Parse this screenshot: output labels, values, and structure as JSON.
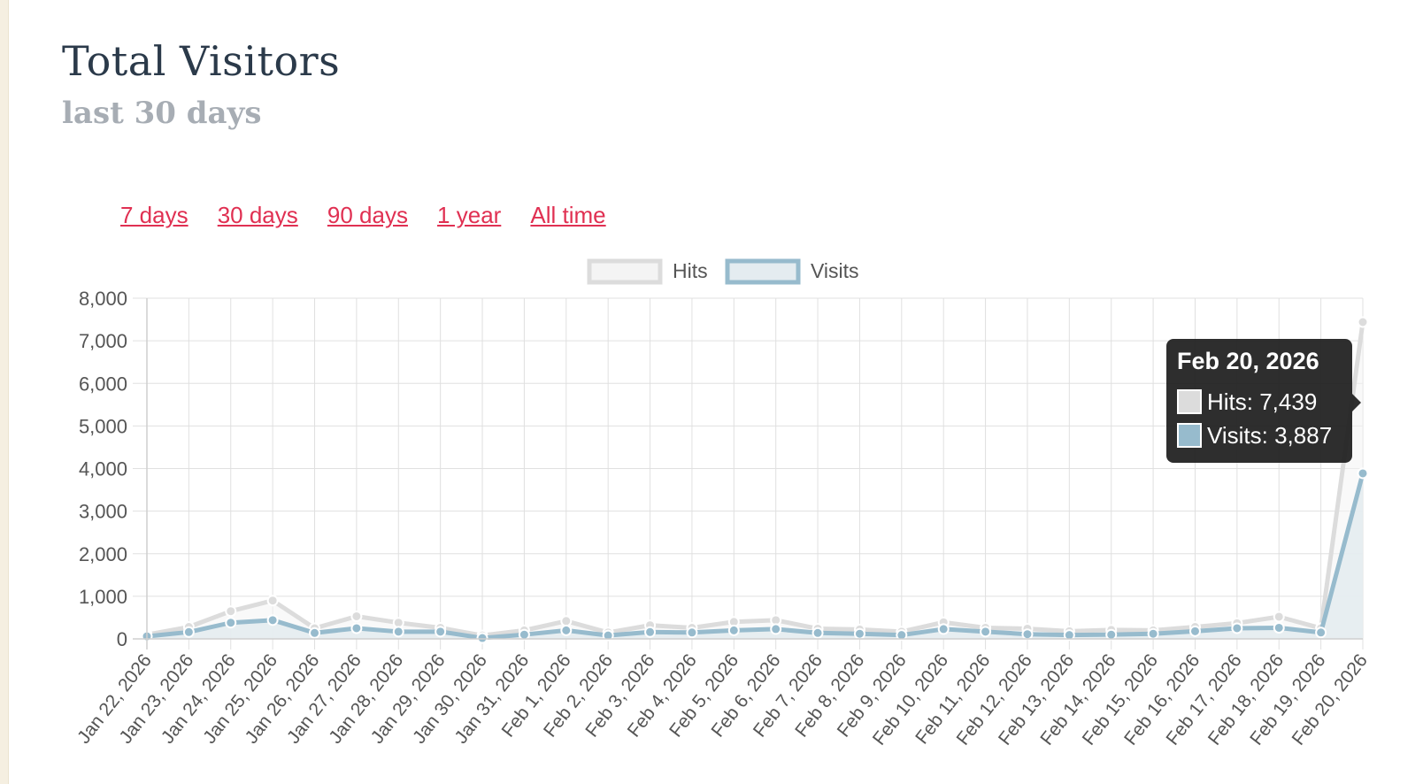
{
  "page": {
    "title": "Total Visitors",
    "subtitle": "last 30 days"
  },
  "ranges": [
    "7 days",
    "30 days",
    "90 days",
    "1 year",
    "All time"
  ],
  "colors": {
    "hits_line": "#dcdcdc",
    "hits_fill": "#f4f4f4",
    "visits_line": "#97bbcd",
    "visits_fill": "#e4ecf0",
    "grid": "#e0e0e0",
    "tick_text": "#555555",
    "link": "#e03052"
  },
  "tooltip": {
    "title": "Feb 20, 2026",
    "hits": "Hits: 7,439",
    "visits": "Visits: 3,887"
  },
  "chart_data": {
    "type": "line",
    "legend_position": "top",
    "grid": true,
    "ylim": [
      0,
      8000
    ],
    "yticks": [
      "0",
      "1,000",
      "2,000",
      "3,000",
      "4,000",
      "5,000",
      "6,000",
      "7,000",
      "8,000"
    ],
    "categories": [
      "Jan 22, 2026",
      "Jan 23, 2026",
      "Jan 24, 2026",
      "Jan 25, 2026",
      "Jan 26, 2026",
      "Jan 27, 2026",
      "Jan 28, 2026",
      "Jan 29, 2026",
      "Jan 30, 2026",
      "Jan 31, 2026",
      "Feb 1, 2026",
      "Feb 2, 2026",
      "Feb 3, 2026",
      "Feb 4, 2026",
      "Feb 5, 2026",
      "Feb 6, 2026",
      "Feb 7, 2026",
      "Feb 8, 2026",
      "Feb 9, 2026",
      "Feb 10, 2026",
      "Feb 11, 2026",
      "Feb 12, 2026",
      "Feb 13, 2026",
      "Feb 14, 2026",
      "Feb 15, 2026",
      "Feb 16, 2026",
      "Feb 17, 2026",
      "Feb 18, 2026",
      "Feb 19, 2026",
      "Feb 20, 2026"
    ],
    "series": [
      {
        "name": "Hits",
        "values": [
          100,
          280,
          650,
          900,
          250,
          530,
          380,
          260,
          80,
          200,
          420,
          150,
          320,
          260,
          400,
          440,
          240,
          220,
          170,
          390,
          260,
          240,
          180,
          210,
          200,
          280,
          370,
          520,
          250,
          7439
        ]
      },
      {
        "name": "Visits",
        "values": [
          60,
          160,
          380,
          440,
          140,
          250,
          170,
          170,
          20,
          100,
          200,
          80,
          160,
          150,
          200,
          230,
          140,
          120,
          90,
          230,
          170,
          110,
          90,
          100,
          120,
          180,
          250,
          260,
          150,
          3887
        ]
      }
    ]
  }
}
